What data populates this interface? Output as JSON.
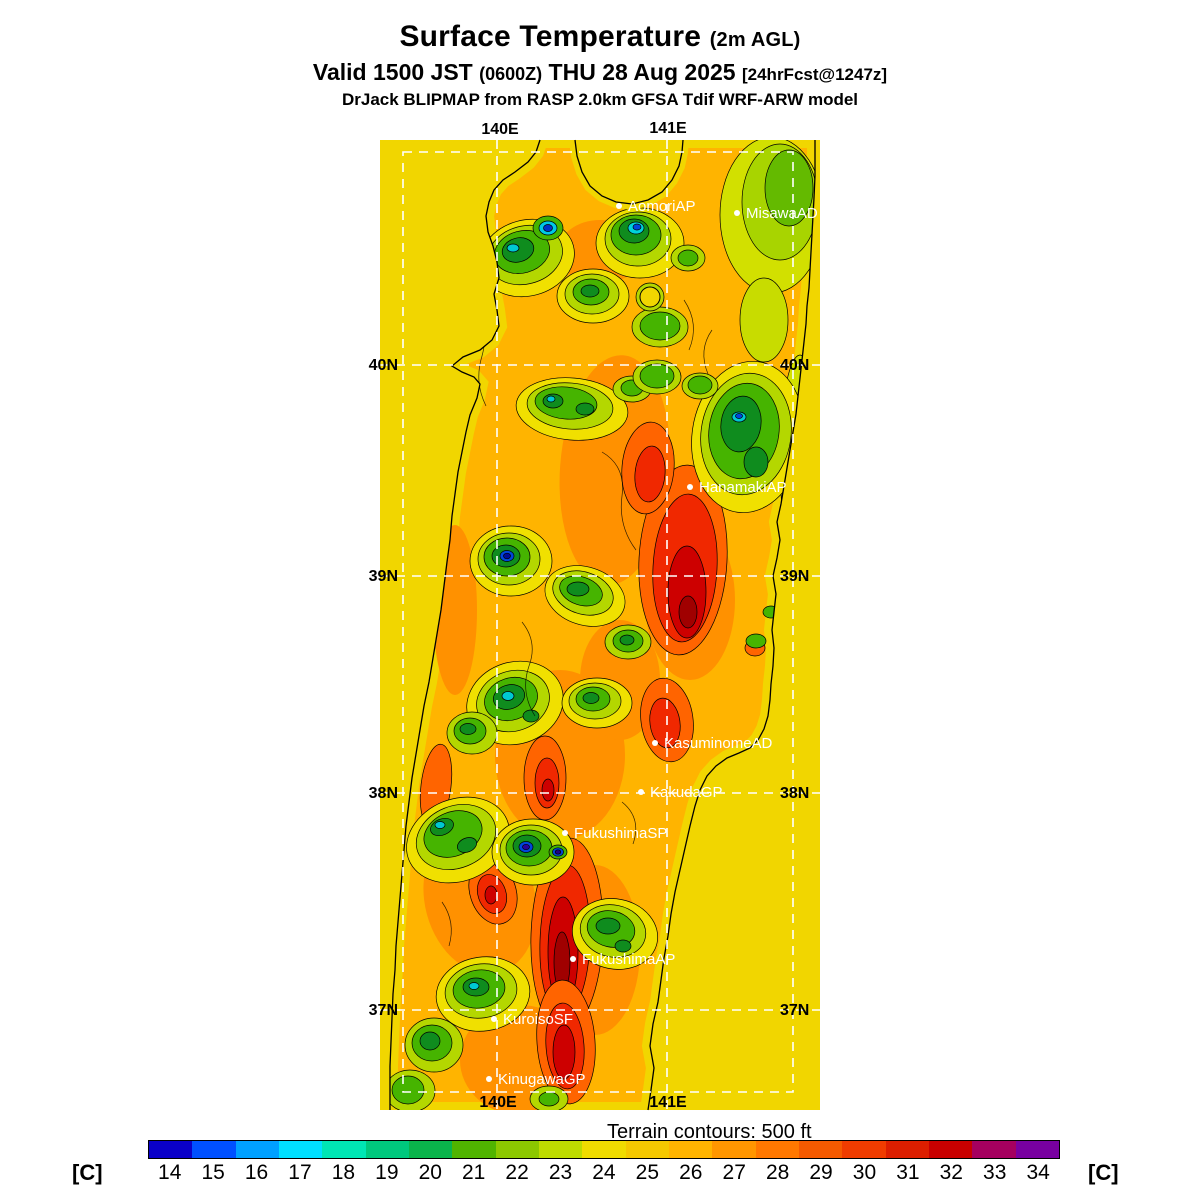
{
  "header": {
    "title_main": "Surface Temperature",
    "title_suffix": "(2m AGL)",
    "valid_main": "Valid 1500 JST",
    "valid_zulu": "(0600Z)",
    "valid_date": "THU 28 Aug 2025",
    "valid_tag": "[24hrFcst@1247z]",
    "model_line": "DrJack BLIPMAP from RASP 2.0km GFSA Tdif WRF-ARW model"
  },
  "map": {
    "grid": {
      "lon_labels": [
        "140E",
        "141E"
      ],
      "lat_labels": [
        "40N",
        "39N",
        "38N",
        "37N"
      ]
    },
    "stations": [
      {
        "name": "AomoriAP"
      },
      {
        "name": "MisawaAD"
      },
      {
        "name": "HanamakiAP"
      },
      {
        "name": "KasuminomeAD"
      },
      {
        "name": "KakudaGP"
      },
      {
        "name": "FukushimaSP"
      },
      {
        "name": "FukushimaAP"
      },
      {
        "name": "KuroisoSF"
      },
      {
        "name": "KinugawaGP"
      }
    ]
  },
  "footer": {
    "terrain_note": "Terrain contours: 500 ft"
  },
  "colorbar": {
    "unit": "[C]",
    "values": [
      "14",
      "15",
      "16",
      "17",
      "18",
      "19",
      "20",
      "21",
      "22",
      "23",
      "24",
      "25",
      "26",
      "27",
      "28",
      "29",
      "30",
      "31",
      "32",
      "33",
      "34"
    ],
    "colors": [
      "#0a00c8",
      "#0050ff",
      "#00a0ff",
      "#00e0ff",
      "#00e6b4",
      "#00c87d",
      "#0ab44b",
      "#50b400",
      "#8cc800",
      "#bedc00",
      "#f0dc00",
      "#f5c800",
      "#ffb400",
      "#ff9600",
      "#ff7800",
      "#f55a00",
      "#f03c00",
      "#dc1e00",
      "#c80000",
      "#a5005f",
      "#7800a0"
    ]
  }
}
